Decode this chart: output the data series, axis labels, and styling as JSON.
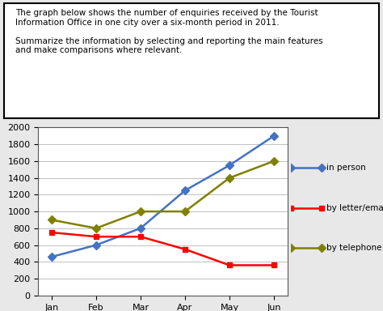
{
  "title_text": "The graph below shows the number of enquiries received by the Tourist\nInformation Office in one city over a six-month period in 2011.\n\nSummarize the information by selecting and reporting the main features\nand make comparisons where relevant.",
  "months": [
    "Jan",
    "Feb",
    "Mar",
    "Apr",
    "May",
    "Jun"
  ],
  "in_person": [
    460,
    600,
    800,
    1250,
    1550,
    1900
  ],
  "by_letter_email": [
    750,
    700,
    700,
    550,
    360,
    360
  ],
  "by_telephone": [
    900,
    800,
    1000,
    1000,
    1400,
    1600
  ],
  "in_person_color": "#4472C4",
  "letter_email_color": "#FF0000",
  "telephone_color": "#808000",
  "ylim": [
    0,
    2000
  ],
  "yticks": [
    0,
    200,
    400,
    600,
    800,
    1000,
    1200,
    1400,
    1600,
    1800,
    2000
  ],
  "legend_labels": [
    "in person",
    "by letter/email",
    "by telephone"
  ],
  "bg_color": "#f0f0f0",
  "plot_bg_color": "#ffffff",
  "box_color": "#000000",
  "title_box_bg": "#ffffff"
}
